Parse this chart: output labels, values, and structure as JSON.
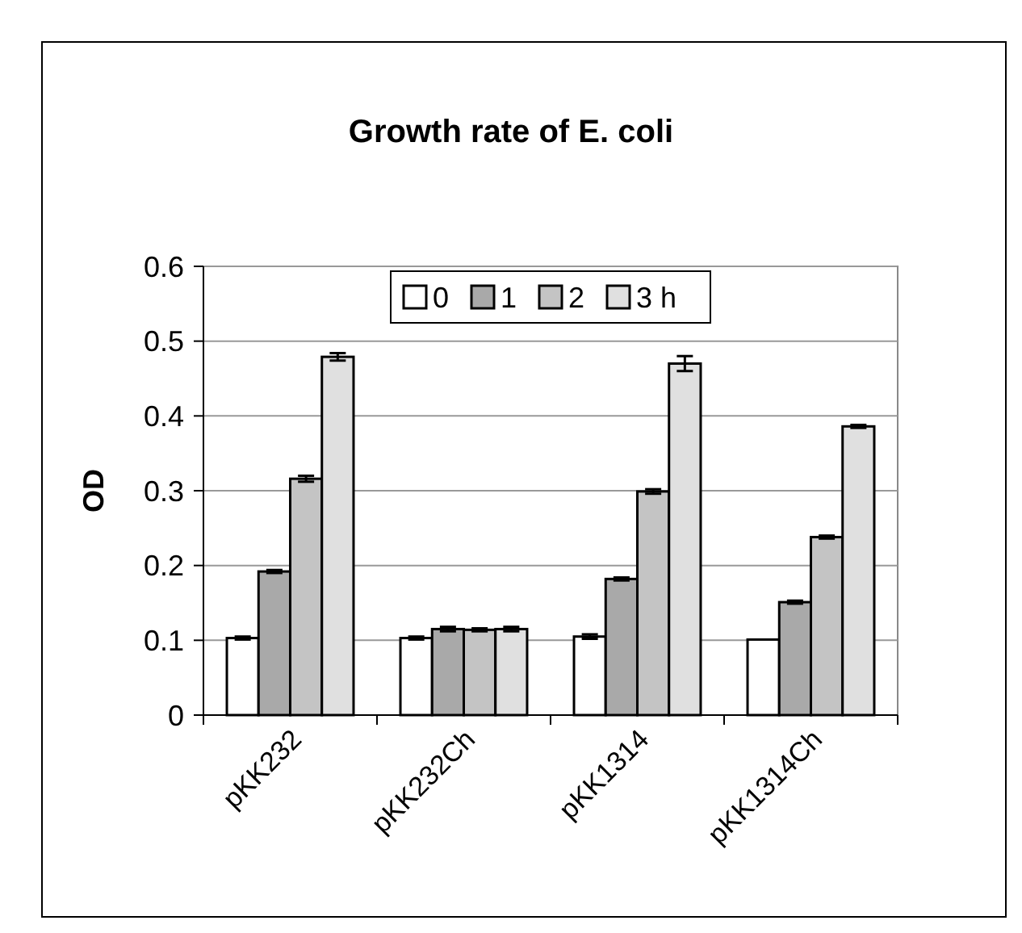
{
  "chart_data": {
    "type": "bar",
    "title": "Growth rate of E. coli",
    "ylabel": "OD",
    "categories": [
      "pKK232",
      "pKK232Ch",
      "pKK1314",
      "pKK1314Ch"
    ],
    "series": [
      {
        "name": "0",
        "color": "#ffffff",
        "values": [
          0.103,
          0.103,
          0.105,
          0.101
        ],
        "errors": [
          0.002,
          0.002,
          0.003,
          null
        ]
      },
      {
        "name": "1",
        "color": "#a9a9a9",
        "values": [
          0.192,
          0.115,
          0.182,
          0.151
        ],
        "errors": [
          0.002,
          0.003,
          0.002,
          0.002
        ]
      },
      {
        "name": "2",
        "color": "#c4c4c4",
        "values": [
          0.316,
          0.114,
          0.299,
          0.238
        ],
        "errors": [
          0.004,
          0.002,
          0.003,
          0.002
        ]
      },
      {
        "name": "3 h",
        "color": "#e0e0e0",
        "values": [
          0.479,
          0.115,
          0.47,
          0.386
        ],
        "errors": [
          0.005,
          0.003,
          0.01,
          0.002
        ]
      }
    ],
    "ylim": [
      0,
      0.6
    ],
    "yticks": [
      0,
      0.1,
      0.2,
      0.3,
      0.4,
      0.5,
      0.6
    ],
    "grid": "y",
    "legend": "top"
  }
}
